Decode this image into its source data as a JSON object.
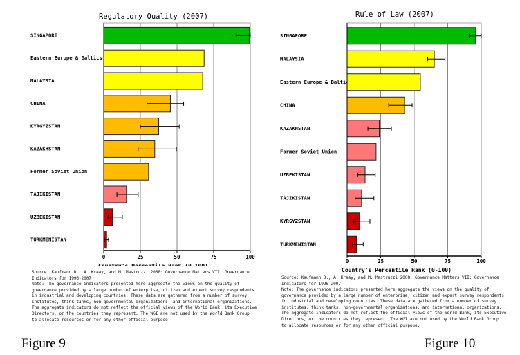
{
  "colors": {
    "green": "#00bb00",
    "yellow": "#ffff00",
    "orange": "#ffbb00",
    "pink": "#ff7777",
    "red": "#cc0000",
    "grid": "#888888"
  },
  "chart_data": [
    {
      "type": "bar",
      "orientation": "horizontal",
      "title": "Regulatory Quality (2007)",
      "xlabel": "Country's Percentile Rank (0-100)",
      "ylabel": "",
      "xlim": [
        0,
        100
      ],
      "xticks": [
        "0",
        "25",
        "50",
        "75",
        "100"
      ],
      "grid": true,
      "categories": [
        "SINGAPORE",
        "Eastern Europe & Baltics",
        "MALAYSIA",
        "CHINA",
        "KYRGYZSTAN",
        "KAZAKHSTAN",
        "Former Soviet Union",
        "TAJIKISTAN",
        "UZBEKISTAN",
        "TURKMENISTAN"
      ],
      "values": [
        99.5,
        68.5,
        67.5,
        45.5,
        37.5,
        34.8,
        30.6,
        15.5,
        6.0,
        2.0
      ],
      "error_low": [
        90.5,
        null,
        null,
        29.5,
        25.0,
        23.5,
        null,
        9.0,
        3.0,
        0.5
      ],
      "error_high": [
        100,
        null,
        null,
        54.5,
        51.5,
        49.5,
        null,
        23.5,
        12.7,
        3.3
      ],
      "bar_colors": [
        "green",
        "yellow",
        "yellow",
        "orange",
        "orange",
        "orange",
        "orange",
        "pink",
        "red",
        "red"
      ],
      "source": "Source: Kaufmann D., A. Kraay, and M. Mastruzzi 2008: Governance Matters VII: Governance\nIndicators for 1996-2007",
      "note": "Note: The governance indicators presented here aggregate the views on the quality of\ngovernance provided by a large number of enterprise, citizen and expert survey respondents\nin industrial and developing countries. These data are gathered from a number of survey\ninstitutes, think tanks, non governmental organizations, and international organizations.\nThe aggregate indicators do not reflect the official views of the World Bank, its Executive\nDirectors, or the countries they represent. The WGI are not used by the World Bank Group\nto allocate resources or for any other official purpose.",
      "caption": "Figure 9"
    },
    {
      "type": "bar",
      "orientation": "horizontal",
      "title": "Rule of Law (2007)",
      "xlabel": "Country's Percentile Rank (0-100)",
      "ylabel": "",
      "xlim": [
        0,
        100
      ],
      "xticks": [
        "0",
        "25",
        "50",
        "75",
        "100"
      ],
      "grid": true,
      "categories": [
        "SINGAPORE",
        "MALAYSIA",
        "Eastern Europe & Baltics",
        "CHINA",
        "KAZAKHSTAN",
        "Former Soviet Union",
        "UZBEKISTAN",
        "TAJIKISTAN",
        "KYRGYZSTAN",
        "TURKMENISTAN"
      ],
      "values": [
        95.9,
        65.0,
        54.6,
        42.8,
        24.0,
        21.6,
        13.4,
        10.8,
        9.3,
        7.0
      ],
      "error_low": [
        91.0,
        60.0,
        null,
        31.0,
        15.5,
        null,
        8.0,
        6.0,
        5.0,
        4.0
      ],
      "error_high": [
        100,
        73.0,
        null,
        48.5,
        33.0,
        null,
        21.0,
        20.0,
        17.0,
        12.0
      ],
      "bar_colors": [
        "green",
        "yellow",
        "yellow",
        "orange",
        "pink",
        "pink",
        "pink",
        "pink",
        "red",
        "red"
      ],
      "source": "Source: Kaufmann D., A. Kraay, and M. Mastruzzi 2008: Governance Matters VII: Governance\nIndicators for 1996-2007",
      "note": "Note: The governance indicators presented here aggregate the views on the quality of\ngovernance provided by a large number of enterprise, citizen and expert survey respondents\nin industrial and developing countries. These data are gathered from a number of survey\ninstitutes, think tanks, non-governmental organizations, and international organizations.\nThe aggregate indicators do not reflect the official views of the World Bank, its Executive\nDirectors, or the countries they represent. The WGI are not used by the World Bank Group\nto allocate resources or for any other official purpose.",
      "caption": "Figure 10"
    }
  ]
}
